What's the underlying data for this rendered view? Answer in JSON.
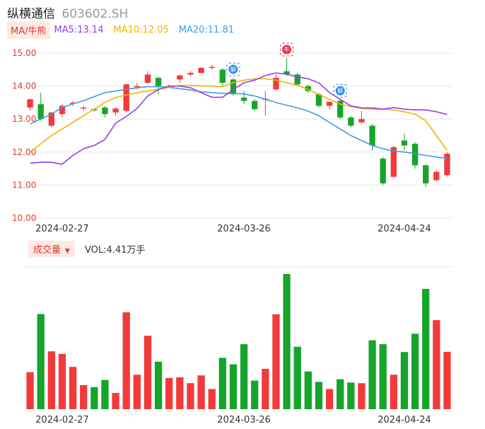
{
  "header": {
    "name": "纵横通信",
    "code": "603602.SH"
  },
  "legend": {
    "tag": "MA/牛熊",
    "ma5": {
      "text": "MA5:13.14",
      "color": "#9b3de6"
    },
    "ma10": {
      "text": "MA10:12.05",
      "color": "#f0b400"
    },
    "ma20": {
      "text": "MA20:11.81",
      "color": "#3d9be9"
    }
  },
  "volume_bar": {
    "tag": "成交量",
    "caret": "▼",
    "text": "VOL:4.41万手"
  },
  "colors": {
    "up": "#f23a3a",
    "down": "#15a52a",
    "grid": "#e8e8e8"
  },
  "badges": [
    {
      "index": 19,
      "text": "解",
      "color": "#2c8ef5"
    },
    {
      "index": 24,
      "text": "牛",
      "color": "#e8314a"
    },
    {
      "index": 29,
      "text": "解",
      "color": "#2c8ef5"
    }
  ],
  "chart_data": {
    "type": "candlestick",
    "price_axis": {
      "ticks": [
        "15.00",
        "14.00",
        "13.00",
        "12.00",
        "11.00",
        "10.00"
      ],
      "ylim": [
        10,
        15
      ]
    },
    "date_labels": [
      {
        "index": 3,
        "text": "2024-02-27"
      },
      {
        "index": 20,
        "text": "2024-03-26"
      },
      {
        "index": 35,
        "text": "2024-04-24"
      }
    ],
    "candles": [
      [
        13.35,
        13.6,
        13.62,
        13.25
      ],
      [
        13.45,
        13.0,
        13.8,
        12.95
      ],
      [
        12.8,
        13.2,
        13.22,
        12.75
      ],
      [
        13.15,
        13.4,
        13.45,
        13.05
      ],
      [
        13.47,
        13.5,
        13.55,
        13.4
      ],
      [
        13.35,
        13.35,
        13.4,
        13.25
      ],
      [
        13.3,
        13.28,
        13.32,
        13.22
      ],
      [
        13.35,
        13.15,
        13.4,
        13.05
      ],
      [
        13.2,
        13.32,
        13.35,
        13.1
      ],
      [
        13.25,
        14.05,
        14.08,
        13.2
      ],
      [
        14.0,
        14.0,
        14.1,
        13.9
      ],
      [
        14.1,
        14.35,
        14.45,
        14.05
      ],
      [
        14.25,
        14.0,
        14.3,
        13.75
      ],
      [
        14.0,
        14.0,
        14.05,
        13.95
      ],
      [
        14.2,
        14.32,
        14.35,
        14.1
      ],
      [
        14.35,
        14.4,
        14.45,
        14.3
      ],
      [
        14.4,
        14.55,
        14.58,
        14.38
      ],
      [
        14.58,
        14.58,
        14.65,
        14.5
      ],
      [
        14.5,
        14.1,
        14.55,
        14.0
      ],
      [
        14.2,
        13.75,
        14.25,
        13.7
      ],
      [
        13.65,
        13.55,
        13.85,
        13.45
      ],
      [
        13.55,
        13.3,
        13.6,
        13.25
      ],
      [
        13.6,
        13.62,
        13.85,
        13.1
      ],
      [
        13.9,
        14.25,
        14.35,
        13.85
      ],
      [
        14.45,
        14.35,
        14.85,
        14.3
      ],
      [
        14.35,
        14.05,
        14.4,
        14.0
      ],
      [
        14.0,
        13.85,
        14.05,
        13.8
      ],
      [
        13.75,
        13.4,
        13.8,
        13.35
      ],
      [
        13.4,
        13.52,
        13.55,
        13.3
      ],
      [
        13.55,
        13.05,
        13.6,
        13.0
      ],
      [
        13.05,
        12.8,
        13.1,
        12.75
      ],
      [
        12.9,
        13.0,
        13.25,
        12.85
      ],
      [
        12.8,
        12.2,
        12.85,
        12.05
      ],
      [
        11.8,
        11.05,
        11.85,
        11.0
      ],
      [
        11.25,
        12.15,
        12.2,
        11.2
      ],
      [
        12.35,
        12.2,
        12.55,
        12.05
      ],
      [
        12.25,
        11.6,
        12.3,
        11.5
      ],
      [
        11.6,
        11.05,
        11.62,
        10.95
      ],
      [
        11.15,
        11.4,
        11.45,
        11.1
      ],
      [
        11.3,
        11.95,
        12.0,
        11.25
      ]
    ],
    "ma5": [
      11.66,
      11.69,
      11.69,
      11.63,
      11.9,
      12.1,
      12.2,
      12.38,
      12.88,
      13.08,
      13.32,
      13.7,
      13.9,
      14.0,
      14.0,
      13.95,
      13.8,
      13.66,
      13.66,
      13.9,
      14.1,
      14.18,
      14.32,
      14.4,
      14.36,
      14.28,
      14.22,
      14.1,
      13.8,
      13.6,
      13.4,
      13.34,
      13.34,
      13.3,
      13.35,
      13.3,
      13.28,
      13.28,
      13.22,
      13.14
    ],
    "ma10": [
      12.0,
      12.25,
      12.5,
      12.7,
      12.9,
      13.1,
      13.3,
      13.5,
      13.65,
      13.73,
      13.8,
      13.85,
      13.9,
      13.96,
      14.02,
      14.02,
      14.0,
      14.0,
      13.98,
      14.1,
      14.18,
      14.22,
      14.22,
      14.18,
      14.1,
      14.02,
      13.9,
      13.75,
      13.6,
      13.45,
      13.38,
      13.32,
      13.3,
      13.3,
      13.28,
      13.22,
      13.15,
      12.95,
      12.5,
      12.05
    ],
    "ma20": [
      12.85,
      13.0,
      13.15,
      13.35,
      13.46,
      13.56,
      13.68,
      13.8,
      13.85,
      13.9,
      13.95,
      13.98,
      13.98,
      13.96,
      13.92,
      13.88,
      13.83,
      13.8,
      13.78,
      13.78,
      13.76,
      13.7,
      13.6,
      13.5,
      13.42,
      13.34,
      13.24,
      13.1,
      12.9,
      12.7,
      12.5,
      12.35,
      12.2,
      12.1,
      12.03,
      12.0,
      11.95,
      11.9,
      11.85,
      11.81
    ],
    "volume": {
      "unit": "万手",
      "values": [
        2.85,
        7.32,
        4.45,
        4.25,
        3.25,
        1.85,
        1.7,
        2.25,
        1.25,
        7.45,
        2.65,
        5.65,
        3.65,
        2.4,
        2.45,
        2.0,
        2.6,
        1.55,
        3.95,
        3.45,
        5.0,
        2.2,
        3.1,
        7.3,
        10.4,
        4.8,
        2.9,
        2.1,
        1.55,
        2.3,
        2.05,
        2.0,
        5.3,
        5.0,
        2.65,
        4.4,
        5.8,
        9.25,
        6.85,
        4.41
      ]
    }
  }
}
